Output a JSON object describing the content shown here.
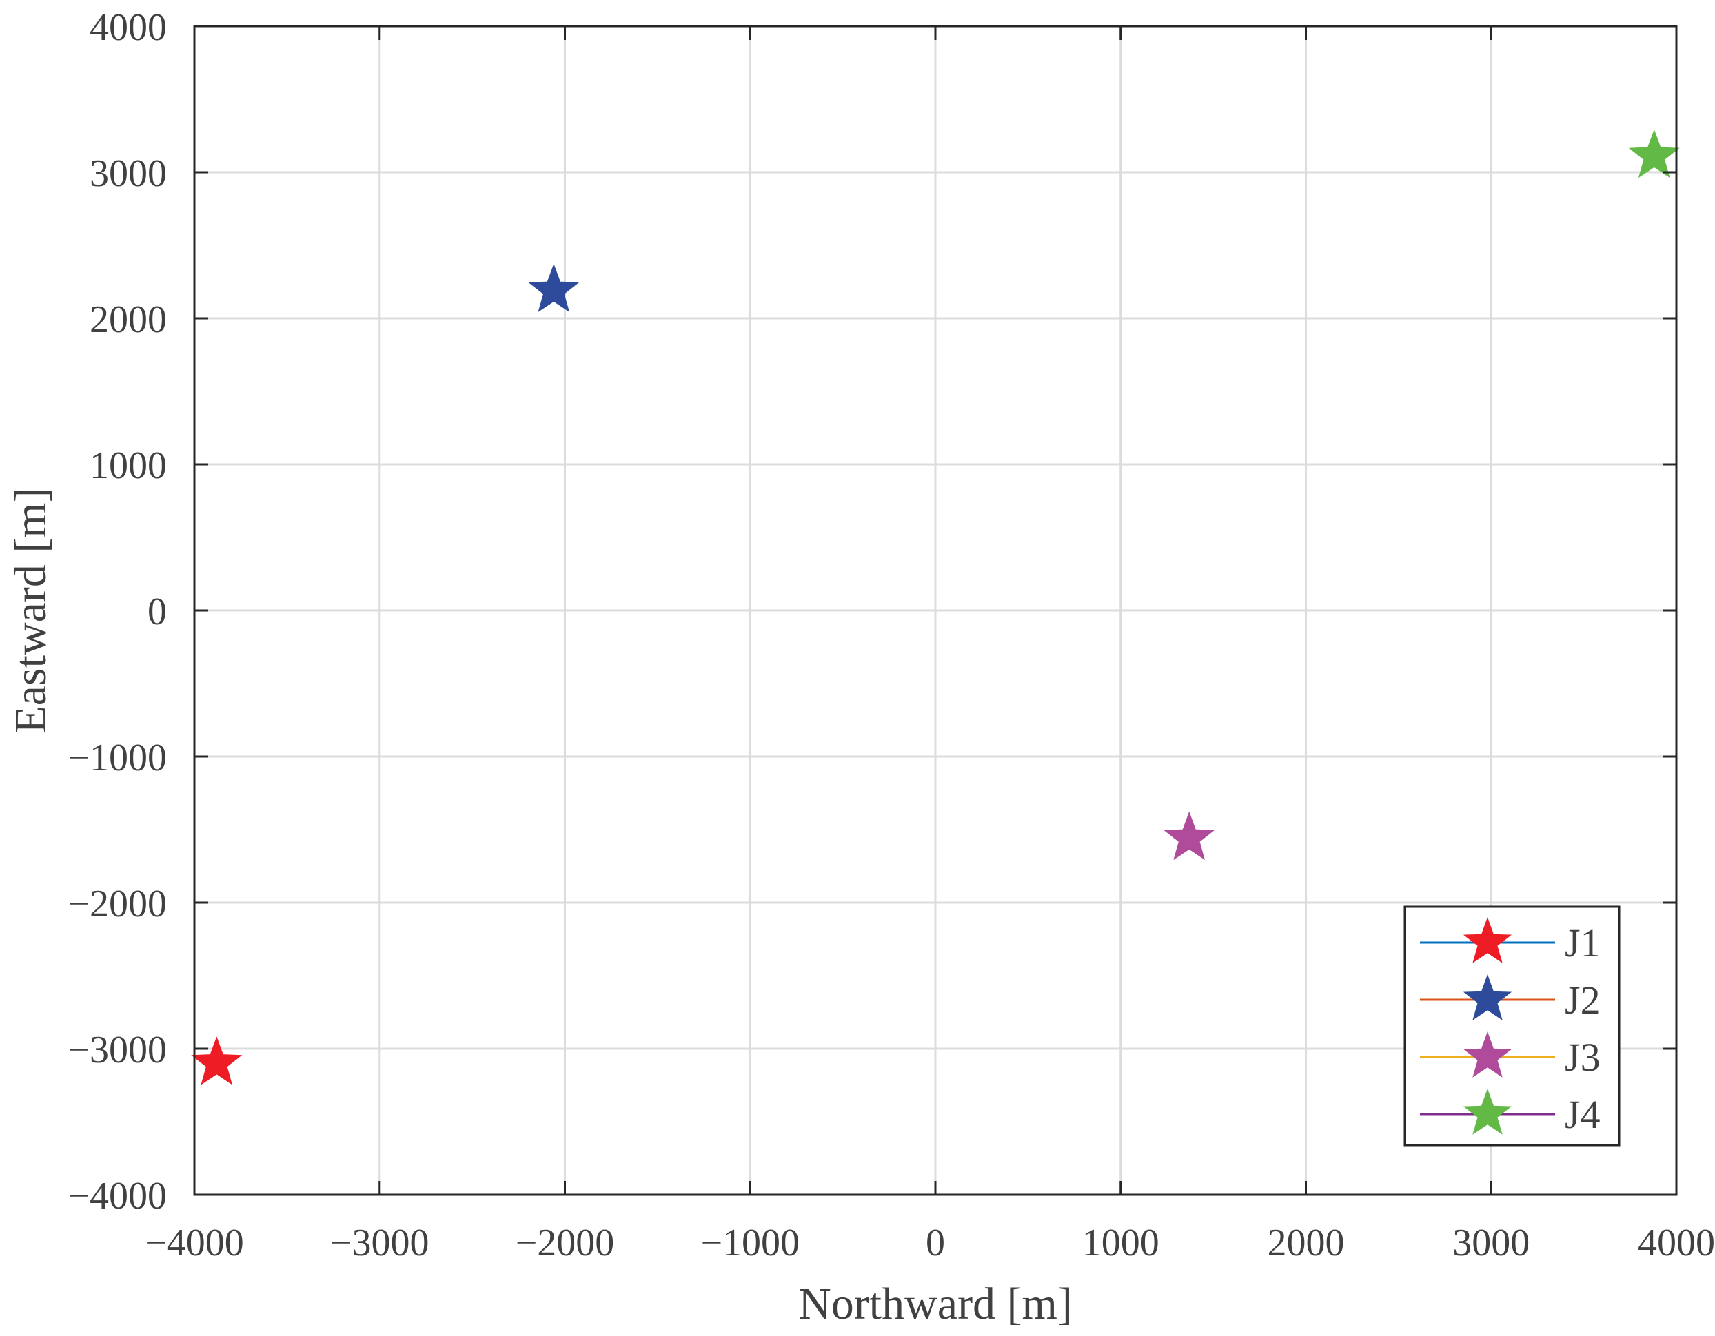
{
  "chart_data": {
    "type": "scatter",
    "xlabel": "Northward [m]",
    "ylabel": "Eastward [m]",
    "xlim": [
      -4000,
      4000
    ],
    "ylim": [
      -4000,
      4000
    ],
    "xticks": [
      -4000,
      -3000,
      -2000,
      -1000,
      0,
      1000,
      2000,
      3000,
      4000
    ],
    "yticks": [
      -4000,
      -3000,
      -2000,
      -1000,
      0,
      1000,
      2000,
      3000,
      4000
    ],
    "x_tick_labels": [
      "−4000",
      "−3000",
      "−2000",
      "−1000",
      "0",
      "1000",
      "2000",
      "3000",
      "4000"
    ],
    "y_tick_labels": [
      "−4000",
      "−3000",
      "−2000",
      "−1000",
      "0",
      "1000",
      "2000",
      "3000",
      "4000"
    ],
    "grid": true,
    "legend_position": "bottom-right",
    "series": [
      {
        "name": "J1",
        "x": -3880,
        "y": -3100,
        "marker": "star",
        "marker_color": "#ee1c24",
        "line_color": "#0072bd"
      },
      {
        "name": "J2",
        "x": -2060,
        "y": 2190,
        "marker": "star",
        "marker_color": "#2e4b9b",
        "line_color": "#d95319"
      },
      {
        "name": "J3",
        "x": 1370,
        "y": -1560,
        "marker": "star",
        "marker_color": "#b04a9a",
        "line_color": "#edb120"
      },
      {
        "name": "J4",
        "x": 3880,
        "y": 3110,
        "marker": "star",
        "marker_color": "#62b946",
        "line_color": "#7e2f8e"
      }
    ]
  }
}
